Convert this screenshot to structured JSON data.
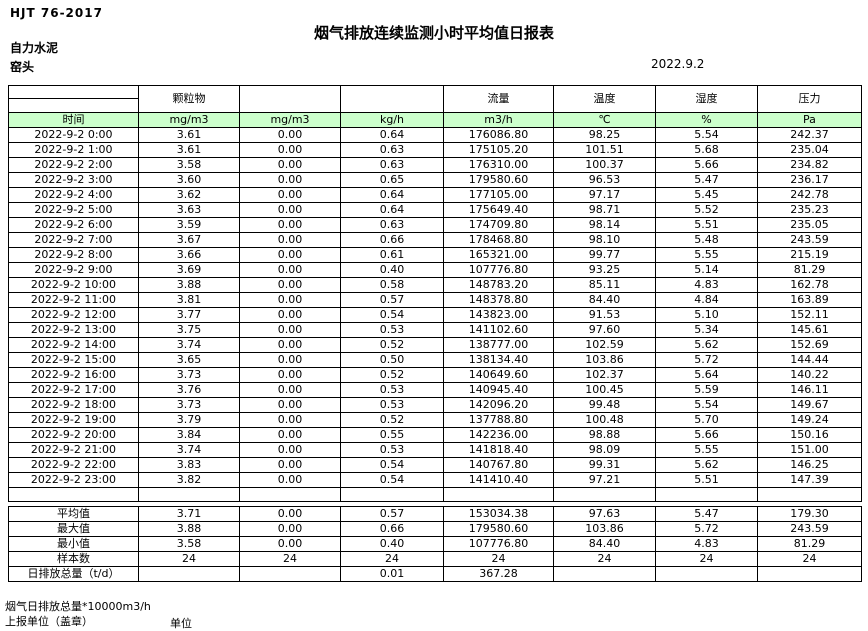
{
  "header": {
    "standard": "HJT 76-2017",
    "title": "烟气排放连续监测小时平均值日报表",
    "company": "自力水泥",
    "station": "窑头",
    "date": "2022.9.2"
  },
  "table": {
    "param_headers": [
      "",
      "颗粒物",
      "",
      "",
      "流量",
      "温度",
      "湿度",
      "压力"
    ],
    "unit_row": [
      "时间",
      "mg/m3",
      "mg/m3",
      "kg/h",
      "m3/h",
      "℃",
      "%",
      "Pa"
    ],
    "colors": {
      "unit_row_bg": "#ccffcc",
      "border": "#000000"
    },
    "rows": [
      [
        "2022-9-2 0:00",
        "3.61",
        "0.00",
        "0.64",
        "176086.80",
        "98.25",
        "5.54",
        "242.37"
      ],
      [
        "2022-9-2 1:00",
        "3.61",
        "0.00",
        "0.63",
        "175105.20",
        "101.51",
        "5.68",
        "235.04"
      ],
      [
        "2022-9-2 2:00",
        "3.58",
        "0.00",
        "0.63",
        "176310.00",
        "100.37",
        "5.66",
        "234.82"
      ],
      [
        "2022-9-2 3:00",
        "3.60",
        "0.00",
        "0.65",
        "179580.60",
        "96.53",
        "5.47",
        "236.17"
      ],
      [
        "2022-9-2 4:00",
        "3.62",
        "0.00",
        "0.64",
        "177105.00",
        "97.17",
        "5.45",
        "242.78"
      ],
      [
        "2022-9-2 5:00",
        "3.63",
        "0.00",
        "0.64",
        "175649.40",
        "98.71",
        "5.52",
        "235.23"
      ],
      [
        "2022-9-2 6:00",
        "3.59",
        "0.00",
        "0.63",
        "174709.80",
        "98.14",
        "5.51",
        "235.05"
      ],
      [
        "2022-9-2 7:00",
        "3.67",
        "0.00",
        "0.66",
        "178468.80",
        "98.10",
        "5.48",
        "243.59"
      ],
      [
        "2022-9-2 8:00",
        "3.66",
        "0.00",
        "0.61",
        "165321.00",
        "99.77",
        "5.55",
        "215.19"
      ],
      [
        "2022-9-2 9:00",
        "3.69",
        "0.00",
        "0.40",
        "107776.80",
        "93.25",
        "5.14",
        "81.29"
      ],
      [
        "2022-9-2 10:00",
        "3.88",
        "0.00",
        "0.58",
        "148783.20",
        "85.11",
        "4.83",
        "162.78"
      ],
      [
        "2022-9-2 11:00",
        "3.81",
        "0.00",
        "0.57",
        "148378.80",
        "84.40",
        "4.84",
        "163.89"
      ],
      [
        "2022-9-2 12:00",
        "3.77",
        "0.00",
        "0.54",
        "143823.00",
        "91.53",
        "5.10",
        "152.11"
      ],
      [
        "2022-9-2 13:00",
        "3.75",
        "0.00",
        "0.53",
        "141102.60",
        "97.60",
        "5.34",
        "145.61"
      ],
      [
        "2022-9-2 14:00",
        "3.74",
        "0.00",
        "0.52",
        "138777.00",
        "102.59",
        "5.62",
        "152.69"
      ],
      [
        "2022-9-2 15:00",
        "3.65",
        "0.00",
        "0.50",
        "138134.40",
        "103.86",
        "5.72",
        "144.44"
      ],
      [
        "2022-9-2 16:00",
        "3.73",
        "0.00",
        "0.52",
        "140649.60",
        "102.37",
        "5.64",
        "140.22"
      ],
      [
        "2022-9-2 17:00",
        "3.76",
        "0.00",
        "0.53",
        "140945.40",
        "100.45",
        "5.59",
        "146.11"
      ],
      [
        "2022-9-2 18:00",
        "3.73",
        "0.00",
        "0.53",
        "142096.20",
        "99.48",
        "5.54",
        "149.67"
      ],
      [
        "2022-9-2 19:00",
        "3.79",
        "0.00",
        "0.52",
        "137788.80",
        "100.48",
        "5.70",
        "149.24"
      ],
      [
        "2022-9-2 20:00",
        "3.84",
        "0.00",
        "0.55",
        "142236.00",
        "98.88",
        "5.66",
        "150.16"
      ],
      [
        "2022-9-2 21:00",
        "3.74",
        "0.00",
        "0.53",
        "141818.40",
        "98.09",
        "5.55",
        "151.00"
      ],
      [
        "2022-9-2 22:00",
        "3.83",
        "0.00",
        "0.54",
        "140767.80",
        "99.31",
        "5.62",
        "146.25"
      ],
      [
        "2022-9-2 23:00",
        "3.82",
        "0.00",
        "0.54",
        "141410.40",
        "97.21",
        "5.51",
        "147.39"
      ]
    ],
    "summary_rows": [
      [
        "平均值",
        "3.71",
        "0.00",
        "0.57",
        "153034.38",
        "97.63",
        "5.47",
        "179.30"
      ],
      [
        "最大值",
        "3.88",
        "0.00",
        "0.66",
        "179580.60",
        "103.86",
        "5.72",
        "243.59"
      ],
      [
        "最小值",
        "3.58",
        "0.00",
        "0.40",
        "107776.80",
        "84.40",
        "4.83",
        "81.29"
      ],
      [
        "样本数",
        "24",
        "24",
        "24",
        "24",
        "24",
        "24",
        "24"
      ],
      [
        "日排放总量（t/d）",
        "",
        "",
        "0.01",
        "367.28",
        "",
        "",
        ""
      ]
    ]
  },
  "footer": {
    "note": "烟气日排放总量*10000m3/h",
    "report_unit_label": "上报单位（盖章）",
    "unit_label": "单位"
  }
}
